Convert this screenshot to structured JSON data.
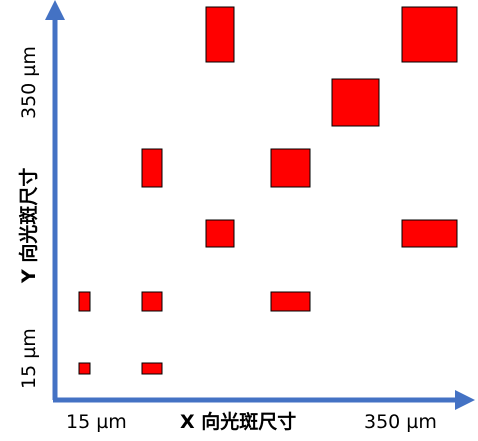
{
  "labels": {
    "x_min": "15 µm",
    "x_title": "X 向光斑尺寸",
    "x_max": "350 µm",
    "y_min": "15 µm",
    "y_title": "Y 向光斑尺寸",
    "y_max": "350 µm"
  },
  "colors": {
    "axis": "#4472c4",
    "spot_fill": "#ff0000",
    "spot_stroke": "#000000"
  }
}
